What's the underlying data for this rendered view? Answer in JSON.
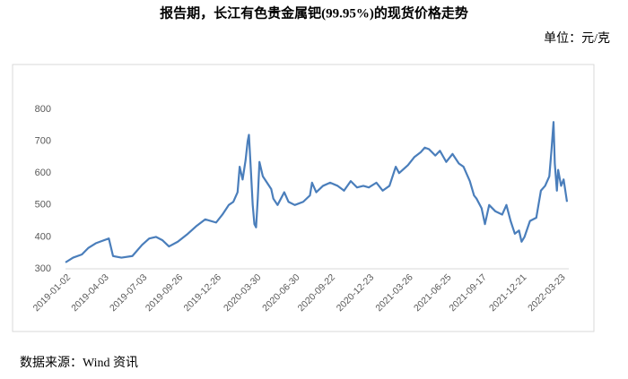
{
  "chart_data": {
    "type": "line",
    "title": "报告期，长江有色贵金属钯(99.95%)的现货价格走势",
    "unit": "单位：元/克",
    "source": "数据来源：Wind 资讯",
    "color": "#4a7ebb",
    "x": [
      "2019-01-02",
      "2019-01-20",
      "2019-02-10",
      "2019-02-25",
      "2019-03-15",
      "2019-03-25",
      "2019-04-15",
      "2019-04-25",
      "2019-05-15",
      "2019-06-10",
      "2019-07-03",
      "2019-07-20",
      "2019-08-05",
      "2019-08-20",
      "2019-09-05",
      "2019-09-26",
      "2019-10-20",
      "2019-11-10",
      "2019-11-30",
      "2019-12-26",
      "2020-01-10",
      "2020-01-25",
      "2020-02-05",
      "2020-02-15",
      "2020-02-20",
      "2020-02-27",
      "2020-03-05",
      "2020-03-10",
      "2020-03-13",
      "2020-03-18",
      "2020-03-22",
      "2020-03-26",
      "2020-03-30",
      "2020-04-03",
      "2020-04-07",
      "2020-04-15",
      "2020-04-25",
      "2020-05-05",
      "2020-05-10",
      "2020-05-20",
      "2020-06-05",
      "2020-06-15",
      "2020-06-30",
      "2020-07-20",
      "2020-08-05",
      "2020-08-10",
      "2020-08-20",
      "2020-09-05",
      "2020-09-22",
      "2020-10-10",
      "2020-10-25",
      "2020-11-10",
      "2020-11-25",
      "2020-12-10",
      "2020-12-23",
      "2021-01-10",
      "2021-01-25",
      "2021-02-10",
      "2021-02-25",
      "2021-03-05",
      "2021-03-26",
      "2021-04-10",
      "2021-04-25",
      "2021-05-05",
      "2021-05-15",
      "2021-05-30",
      "2021-06-10",
      "2021-06-25",
      "2021-07-10",
      "2021-07-25",
      "2021-08-05",
      "2021-08-20",
      "2021-08-30",
      "2021-09-05",
      "2021-09-17",
      "2021-09-25",
      "2021-10-05",
      "2021-10-20",
      "2021-11-05",
      "2021-11-15",
      "2021-11-25",
      "2021-12-05",
      "2021-12-15",
      "2021-12-21",
      "2021-12-28",
      "2022-01-10",
      "2022-01-25",
      "2022-02-05",
      "2022-02-15",
      "2022-02-25",
      "2022-03-02",
      "2022-03-07",
      "2022-03-10",
      "2022-03-15",
      "2022-03-18",
      "2022-03-25",
      "2022-03-31",
      "2022-04-08"
    ],
    "values": [
      320,
      335,
      345,
      365,
      380,
      385,
      395,
      340,
      335,
      340,
      375,
      395,
      400,
      390,
      370,
      385,
      410,
      435,
      455,
      445,
      470,
      500,
      510,
      540,
      620,
      580,
      640,
      700,
      720,
      600,
      500,
      440,
      430,
      520,
      635,
      590,
      570,
      550,
      520,
      500,
      540,
      510,
      500,
      510,
      530,
      570,
      540,
      560,
      570,
      560,
      545,
      575,
      555,
      560,
      555,
      570,
      545,
      560,
      620,
      600,
      625,
      650,
      665,
      680,
      675,
      655,
      670,
      635,
      660,
      630,
      620,
      575,
      530,
      520,
      490,
      440,
      500,
      480,
      470,
      500,
      450,
      410,
      420,
      385,
      400,
      450,
      460,
      545,
      560,
      590,
      670,
      760,
      630,
      545,
      610,
      560,
      580,
      510
    ],
    "ylim": [
      300,
      800
    ],
    "yticks": [
      300,
      400,
      500,
      600,
      700,
      800
    ],
    "xticks": [
      "2019-01-02",
      "2019-04-03",
      "2019-07-03",
      "2019-09-26",
      "2019-12-26",
      "2020-03-30",
      "2020-06-30",
      "2020-09-22",
      "2020-12-23",
      "2021-03-26",
      "2021-06-25",
      "2021-09-17",
      "2021-12-21",
      "2022-03-23"
    ]
  }
}
